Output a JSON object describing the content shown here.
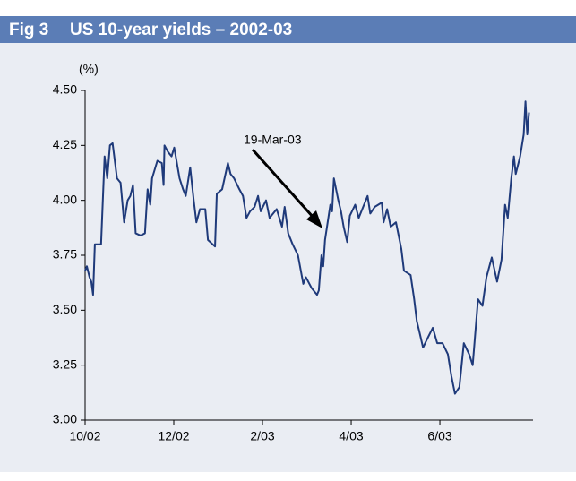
{
  "chart_data": {
    "type": "line",
    "figure_label": "Fig 3",
    "title": "US 10-year yields – 2002-03",
    "y_label": "(%)",
    "annotation": "19-Mar-03",
    "color": "#1f3a7a",
    "grid": false,
    "xlim": [
      0,
      10.1
    ],
    "xticks": [
      {
        "value": 0,
        "label": "10/02"
      },
      {
        "value": 2,
        "label": "12/02"
      },
      {
        "value": 4,
        "label": "2/03"
      },
      {
        "value": 6,
        "label": "4/03"
      },
      {
        "value": 8,
        "label": "6/03"
      }
    ],
    "ylim": [
      3,
      4.5
    ],
    "yticks": [
      {
        "value": 3,
        "label": "3.00"
      },
      {
        "value": 3.25,
        "label": "3.25"
      },
      {
        "value": 3.5,
        "label": "3.50"
      },
      {
        "value": 3.75,
        "label": "3.75"
      },
      {
        "value": 4,
        "label": "4.00"
      },
      {
        "value": 4.25,
        "label": "4.25"
      },
      {
        "value": 4.5,
        "label": "4.50"
      }
    ],
    "x": [
      0,
      0.04,
      0.1,
      0.14,
      0.18,
      0.22,
      0.36,
      0.4,
      0.44,
      0.5,
      0.56,
      0.62,
      0.72,
      0.8,
      0.88,
      0.96,
      1.02,
      1.08,
      1.14,
      1.25,
      1.35,
      1.41,
      1.47,
      1.51,
      1.63,
      1.73,
      1.77,
      1.79,
      1.87,
      1.95,
      2.01,
      2.13,
      2.21,
      2.27,
      2.37,
      2.45,
      2.51,
      2.59,
      2.71,
      2.77,
      2.93,
      2.97,
      3.09,
      3.22,
      3.28,
      3.36,
      3.48,
      3.56,
      3.64,
      3.72,
      3.82,
      3.9,
      3.96,
      4.08,
      4.16,
      4.32,
      4.44,
      4.5,
      4.58,
      4.68,
      4.8,
      4.92,
      4.98,
      5.11,
      5.23,
      5.27,
      5.33,
      5.37,
      5.41,
      5.53,
      5.57,
      5.61,
      5.71,
      5.77,
      5.83,
      5.91,
      5.97,
      6.09,
      6.17,
      6.37,
      6.43,
      6.53,
      6.69,
      6.73,
      6.81,
      6.89,
      7.01,
      7.13,
      7.19,
      7.34,
      7.42,
      7.48,
      7.54,
      7.62,
      7.74,
      7.84,
      7.94,
      8.06,
      8.18,
      8.26,
      8.34,
      8.44,
      8.54,
      8.66,
      8.74,
      8.86,
      8.96,
      9.05,
      9.17,
      9.29,
      9.39,
      9.47,
      9.53,
      9.61,
      9.67,
      9.71,
      9.81,
      9.89,
      9.93,
      9.97,
      10.01
    ],
    "values": [
      3.68,
      3.7,
      3.65,
      3.63,
      3.57,
      3.8,
      3.8,
      4.0,
      4.2,
      4.1,
      4.25,
      4.26,
      4.1,
      4.08,
      3.9,
      4.0,
      4.02,
      4.07,
      3.85,
      3.84,
      3.85,
      4.05,
      3.98,
      4.1,
      4.18,
      4.17,
      4.07,
      4.25,
      4.22,
      4.2,
      4.24,
      4.1,
      4.05,
      4.02,
      4.15,
      4.0,
      3.9,
      3.96,
      3.96,
      3.82,
      3.79,
      4.03,
      4.05,
      4.17,
      4.12,
      4.1,
      4.05,
      4.02,
      3.92,
      3.95,
      3.97,
      4.02,
      3.95,
      4.0,
      3.92,
      3.96,
      3.88,
      3.97,
      3.85,
      3.8,
      3.75,
      3.62,
      3.65,
      3.6,
      3.57,
      3.59,
      3.75,
      3.7,
      3.82,
      3.98,
      3.95,
      4.1,
      4.0,
      3.95,
      3.88,
      3.81,
      3.93,
      3.98,
      3.92,
      4.02,
      3.94,
      3.97,
      3.99,
      3.9,
      3.96,
      3.88,
      3.9,
      3.78,
      3.68,
      3.66,
      3.55,
      3.45,
      3.4,
      3.33,
      3.38,
      3.42,
      3.35,
      3.35,
      3.3,
      3.2,
      3.12,
      3.15,
      3.35,
      3.3,
      3.25,
      3.55,
      3.52,
      3.65,
      3.74,
      3.63,
      3.73,
      3.98,
      3.92,
      4.1,
      4.2,
      4.12,
      4.2,
      4.3,
      4.45,
      4.3,
      4.4
    ]
  }
}
